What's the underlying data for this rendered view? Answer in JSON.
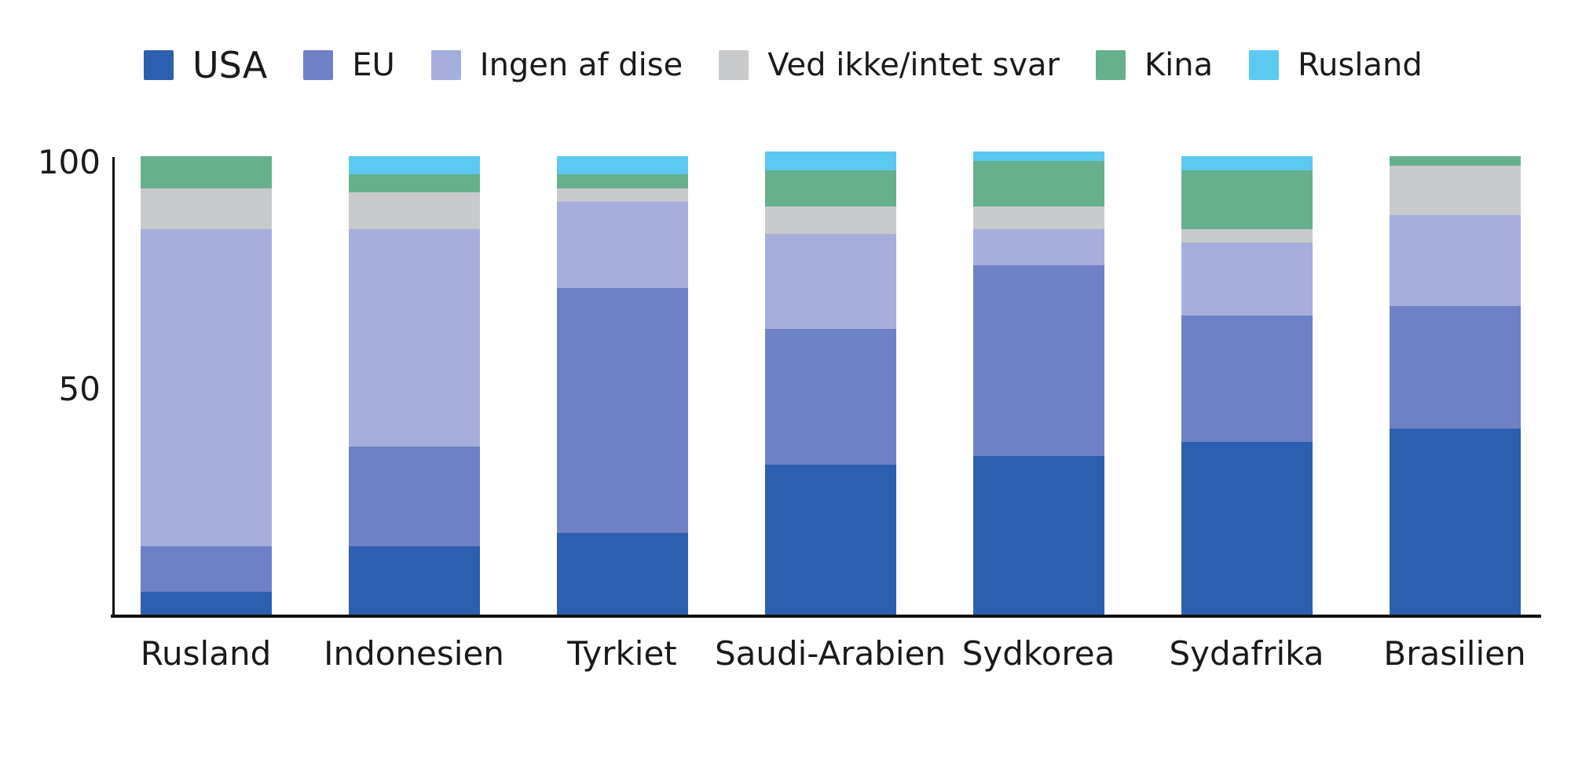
{
  "colors": {
    "usa": "#2d5fb0",
    "eu": "#6e81c4",
    "ingen": "#a6aedd",
    "ved_ikke": "#c8cacc",
    "kina": "#67b08d",
    "rusland": "#5bc9f2",
    "axis": "#111111",
    "text": "#1a1a1a"
  },
  "legend": {
    "items": [
      {
        "label": "USA",
        "color": "#2d5fb0"
      },
      {
        "label": "EU",
        "color": "#6e81c4"
      },
      {
        "label": "Ingen af dise",
        "color": "#a6aedd"
      },
      {
        "label": "Ved ikke/intet svar",
        "color": "#c8cacc"
      },
      {
        "label": "Kina",
        "color": "#67b08d"
      },
      {
        "label": "Rusland",
        "color": "#5bc9f2"
      }
    ]
  },
  "chart_data": {
    "type": "bar",
    "stacked": true,
    "categories": [
      "Rusland",
      "Indonesien",
      "Tyrkiet",
      "Saudi-Arabien",
      "Sydkorea",
      "Sydafrika",
      "Brasilien"
    ],
    "series": [
      {
        "name": "USA",
        "color": "#2d5fb0",
        "values": [
          5,
          15,
          18,
          33,
          35,
          38,
          41
        ]
      },
      {
        "name": "EU",
        "color": "#6e81c4",
        "values": [
          10,
          22,
          54,
          30,
          42,
          28,
          27
        ]
      },
      {
        "name": "Ingen af dise",
        "color": "#a6aedd",
        "values": [
          70,
          48,
          19,
          21,
          8,
          16,
          20
        ]
      },
      {
        "name": "Ved ikke/intet svar",
        "color": "#c8cacc",
        "values": [
          9,
          8,
          3,
          6,
          5,
          3,
          11
        ]
      },
      {
        "name": "Kina",
        "color": "#67b08d",
        "values": [
          7,
          4,
          3,
          8,
          10,
          13,
          2
        ]
      },
      {
        "name": "Rusland",
        "color": "#5bc9f2",
        "values": [
          0,
          4,
          4,
          4,
          2,
          3,
          0
        ]
      }
    ],
    "title": "",
    "xlabel": "",
    "ylabel": "",
    "ylim": [
      0,
      100
    ],
    "y_ticks": [
      50,
      100
    ],
    "grid": false,
    "legend_position": "top"
  }
}
